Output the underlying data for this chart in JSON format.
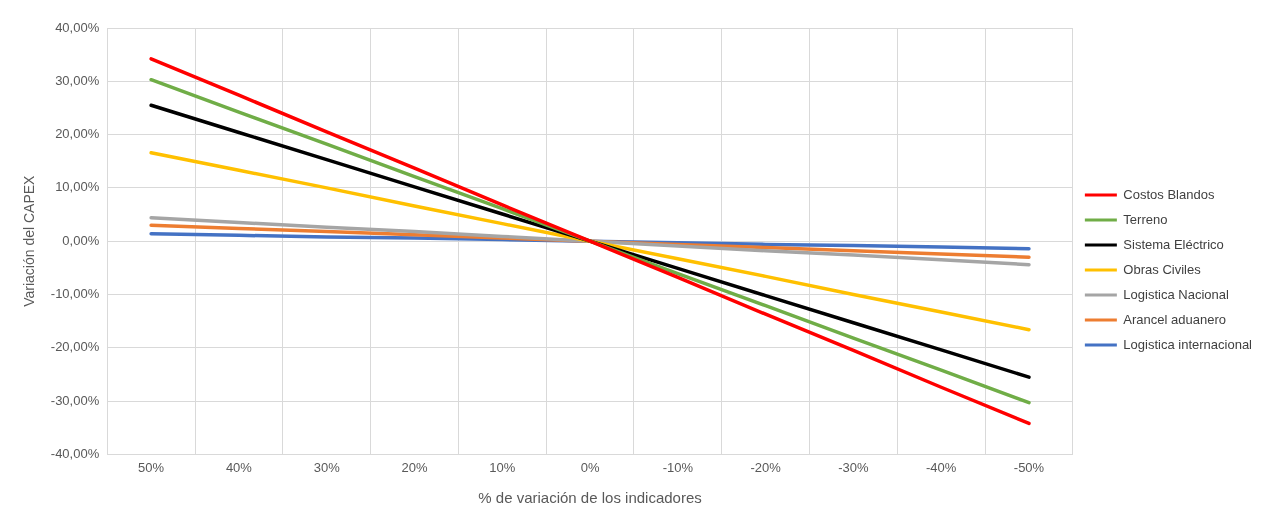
{
  "chart_data": {
    "type": "line",
    "xlabel": "% de variación de los indicadores",
    "ylabel": "Variación del CAPEX",
    "categories": [
      "50%",
      "40%",
      "30%",
      "20%",
      "10%",
      "0%",
      "-10%",
      "-20%",
      "-30%",
      "-40%",
      "-50%"
    ],
    "series": [
      {
        "name": "Costos Blandos",
        "color": "#ff0000",
        "values": [
          34.2,
          27.4,
          20.5,
          13.7,
          6.8,
          0,
          -6.8,
          -13.7,
          -20.5,
          -27.4,
          -34.2
        ]
      },
      {
        "name": "Terreno",
        "color": "#70ad47",
        "values": [
          30.3,
          24.2,
          18.2,
          12.1,
          6.1,
          0,
          -6.1,
          -12.1,
          -18.2,
          -24.2,
          -30.3
        ]
      },
      {
        "name": "Sistema Eléctrico",
        "color": "#000000",
        "values": [
          25.5,
          20.4,
          15.3,
          10.2,
          5.1,
          0,
          -5.1,
          -10.2,
          -15.3,
          -20.4,
          -25.5
        ]
      },
      {
        "name": "Obras Civiles",
        "color": "#ffc000",
        "values": [
          16.6,
          13.3,
          10.0,
          6.6,
          3.3,
          0,
          -3.3,
          -6.6,
          -10.0,
          -13.3,
          -16.6
        ]
      },
      {
        "name": "Logistica Nacional",
        "color": "#a5a5a5",
        "values": [
          4.4,
          3.5,
          2.6,
          1.8,
          0.9,
          0,
          -0.9,
          -1.8,
          -2.6,
          -3.5,
          -4.4
        ]
      },
      {
        "name": "Arancel aduanero",
        "color": "#ed7d31",
        "values": [
          3.0,
          2.4,
          1.8,
          1.2,
          0.6,
          0,
          -0.6,
          -1.2,
          -1.8,
          -2.4,
          -3.0
        ]
      },
      {
        "name": "Logistica internacional",
        "color": "#4472c4",
        "values": [
          1.4,
          1.1,
          0.8,
          0.6,
          0.3,
          0,
          -0.3,
          -0.6,
          -0.8,
          -1.1,
          -1.4
        ]
      }
    ],
    "ylim": [
      -40,
      40
    ],
    "yticks": [
      {
        "value": -40,
        "label": "-40,00%"
      },
      {
        "value": -30,
        "label": "-30,00%"
      },
      {
        "value": -20,
        "label": "-20,00%"
      },
      {
        "value": -10,
        "label": "-10,00%"
      },
      {
        "value": 0,
        "label": "0,00%"
      },
      {
        "value": 10,
        "label": "10,00%"
      },
      {
        "value": 20,
        "label": "20,00%"
      },
      {
        "value": 30,
        "label": "30,00%"
      },
      {
        "value": 40,
        "label": "40,00%"
      }
    ],
    "grid": true,
    "legend": "right",
    "marker": "none",
    "line_style": "solid"
  }
}
